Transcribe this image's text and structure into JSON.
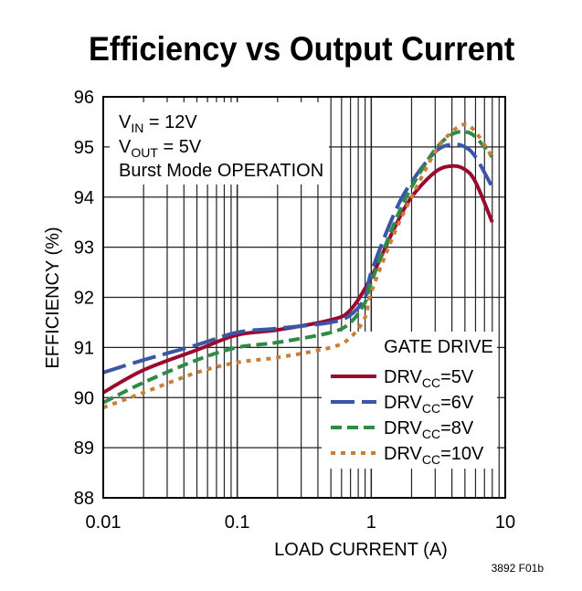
{
  "chart_data": {
    "type": "line",
    "title": "Efficiency vs Output Current",
    "xlabel": "LOAD CURRENT (A)",
    "ylabel": "EFFICIENCY (%)",
    "xscale": "log",
    "xlim": [
      0.01,
      10
    ],
    "ylim": [
      88,
      96
    ],
    "grid": true,
    "x_ticks": [
      "0.01",
      "0.1",
      "1",
      "10"
    ],
    "y_ticks": [
      "88",
      "89",
      "90",
      "91",
      "92",
      "93",
      "94",
      "95",
      "96"
    ],
    "conditions": [
      "V_IN = 12V",
      "V_OUT = 5V",
      "Burst Mode OPERATION"
    ],
    "legend_title": "GATE DRIVE",
    "legend_position": "bottom-right",
    "figure_id": "3892 F01b",
    "series": [
      {
        "name": "DRVCC=5V",
        "label_main": "DRV",
        "label_sub": "CC",
        "label_val": "=5V",
        "color": "#9b0a2e",
        "style": "solid",
        "x": [
          0.01,
          0.02,
          0.05,
          0.1,
          0.2,
          0.5,
          0.7,
          1,
          1.5,
          2,
          3,
          4,
          5,
          6,
          8
        ],
        "y": [
          90.1,
          90.55,
          90.95,
          91.25,
          91.35,
          91.55,
          91.75,
          92.4,
          93.4,
          94.0,
          94.5,
          94.62,
          94.55,
          94.3,
          93.5
        ]
      },
      {
        "name": "DRVCC=6V",
        "label_main": "DRV",
        "label_sub": "CC",
        "label_val": "=6V",
        "color": "#3a56a8",
        "style": "longdash",
        "x": [
          0.01,
          0.02,
          0.05,
          0.1,
          0.2,
          0.5,
          0.7,
          0.9,
          1,
          1.5,
          2,
          3,
          4,
          5,
          6,
          8
        ],
        "y": [
          90.5,
          90.75,
          91.05,
          91.3,
          91.38,
          91.5,
          91.65,
          92.0,
          92.5,
          93.7,
          94.3,
          94.9,
          95.05,
          95.0,
          94.8,
          94.2
        ]
      },
      {
        "name": "DRVCC=8V",
        "label_main": "DRV",
        "label_sub": "CC",
        "label_val": "=8V",
        "color": "#2e8b45",
        "style": "dash",
        "x": [
          0.01,
          0.02,
          0.05,
          0.1,
          0.2,
          0.5,
          0.7,
          0.9,
          1,
          1.5,
          2,
          3,
          4,
          5,
          6,
          8
        ],
        "y": [
          89.9,
          90.3,
          90.75,
          91.0,
          91.1,
          91.3,
          91.5,
          91.9,
          92.3,
          93.5,
          94.2,
          94.95,
          95.25,
          95.3,
          95.2,
          94.8
        ]
      },
      {
        "name": "DRVCC=10V",
        "label_main": "DRV",
        "label_sub": "CC",
        "label_val": "=10V",
        "color": "#c87f38",
        "style": "dot",
        "x": [
          0.01,
          0.02,
          0.05,
          0.1,
          0.2,
          0.5,
          0.7,
          0.9,
          1,
          1.5,
          2,
          3,
          4,
          5,
          6,
          8
        ],
        "y": [
          89.8,
          90.1,
          90.5,
          90.7,
          90.8,
          91.0,
          91.2,
          91.6,
          92.1,
          93.3,
          94.0,
          94.9,
          95.3,
          95.45,
          95.3,
          94.8
        ]
      }
    ]
  }
}
